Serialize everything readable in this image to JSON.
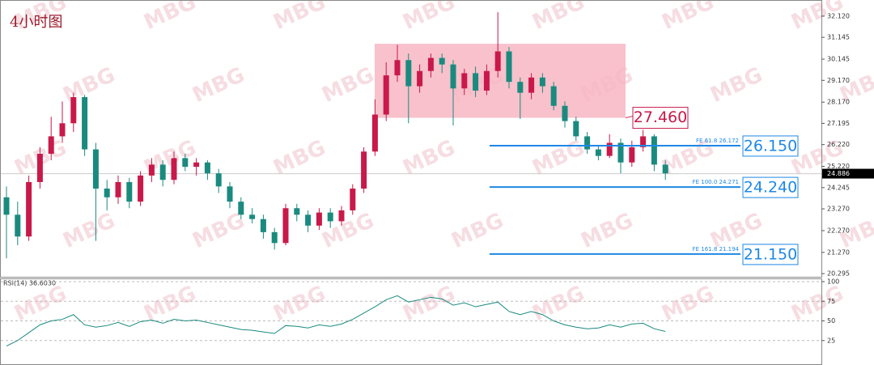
{
  "chart_data": {
    "type": "candlestick",
    "title": "4小时图",
    "watermark": "MBG",
    "up_color": "#c8194a",
    "down_color": "#1a8a7f",
    "ylim": [
      20.15,
      32.86
    ],
    "yticks": [
      {
        "value": 32.12,
        "label": "32.120"
      },
      {
        "value": 31.145,
        "label": "31.145"
      },
      {
        "value": 30.145,
        "label": "30.145"
      },
      {
        "value": 29.17,
        "label": "29.170"
      },
      {
        "value": 28.17,
        "label": "28.170"
      },
      {
        "value": 27.195,
        "label": "27.195"
      },
      {
        "value": 26.22,
        "label": "26.220"
      },
      {
        "value": 25.22,
        "label": "25.220"
      },
      {
        "value": 24.245,
        "label": "24.245"
      },
      {
        "value": 23.27,
        "label": "23.270"
      },
      {
        "value": 22.27,
        "label": "22.270"
      },
      {
        "value": 21.27,
        "label": "21.270"
      },
      {
        "value": 20.295,
        "label": "20.295"
      }
    ],
    "candles": [
      [
        23.8,
        24.3,
        21.0,
        23.0
      ],
      [
        23.0,
        23.6,
        21.6,
        22.0
      ],
      [
        22.0,
        24.8,
        21.8,
        24.5
      ],
      [
        24.5,
        26.1,
        24.2,
        25.8
      ],
      [
        25.8,
        27.5,
        25.5,
        26.6
      ],
      [
        26.6,
        28.2,
        26.3,
        27.2
      ],
      [
        27.2,
        28.6,
        26.8,
        28.4
      ],
      [
        28.4,
        28.5,
        25.7,
        26.0
      ],
      [
        26.0,
        26.3,
        21.8,
        24.2
      ],
      [
        24.2,
        24.6,
        23.2,
        23.8
      ],
      [
        23.8,
        24.8,
        23.5,
        24.5
      ],
      [
        24.5,
        24.7,
        23.3,
        23.6
      ],
      [
        23.6,
        25.0,
        23.4,
        24.8
      ],
      [
        24.8,
        25.6,
        24.5,
        25.3
      ],
      [
        25.3,
        25.5,
        24.3,
        24.6
      ],
      [
        24.6,
        25.9,
        24.4,
        25.6
      ],
      [
        25.6,
        25.8,
        25.0,
        25.2
      ],
      [
        25.2,
        25.6,
        24.8,
        25.4
      ],
      [
        25.4,
        25.5,
        24.6,
        24.9
      ],
      [
        24.9,
        25.1,
        24.0,
        24.3
      ],
      [
        24.3,
        24.5,
        23.3,
        23.6
      ],
      [
        23.6,
        23.8,
        22.8,
        23.0
      ],
      [
        23.0,
        23.3,
        22.6,
        22.8
      ],
      [
        22.8,
        23.0,
        21.9,
        22.2
      ],
      [
        22.2,
        22.4,
        21.4,
        21.7
      ],
      [
        21.7,
        23.5,
        21.6,
        23.3
      ],
      [
        23.3,
        23.5,
        22.7,
        23.0
      ],
      [
        23.0,
        23.2,
        22.2,
        22.5
      ],
      [
        22.5,
        23.3,
        22.3,
        23.1
      ],
      [
        23.1,
        23.3,
        22.4,
        22.7
      ],
      [
        22.7,
        23.4,
        22.5,
        23.2
      ],
      [
        23.2,
        24.4,
        23.0,
        24.2
      ],
      [
        24.2,
        26.1,
        24.0,
        25.9
      ],
      [
        25.9,
        28.3,
        25.7,
        27.6
      ],
      [
        27.6,
        30.0,
        27.3,
        29.4
      ],
      [
        29.4,
        30.8,
        29.1,
        30.1
      ],
      [
        30.1,
        30.4,
        27.2,
        28.9
      ],
      [
        28.9,
        29.9,
        28.6,
        29.6
      ],
      [
        29.6,
        30.4,
        29.3,
        30.2
      ],
      [
        30.2,
        30.4,
        29.5,
        29.9
      ],
      [
        29.9,
        30.1,
        27.1,
        28.8
      ],
      [
        28.8,
        29.7,
        28.5,
        29.5
      ],
      [
        29.5,
        29.8,
        28.4,
        28.7
      ],
      [
        28.7,
        29.9,
        28.5,
        29.6
      ],
      [
        29.6,
        32.3,
        29.3,
        30.5
      ],
      [
        30.5,
        30.7,
        28.8,
        29.1
      ],
      [
        29.1,
        29.3,
        27.4,
        28.6
      ],
      [
        28.6,
        29.5,
        28.3,
        29.3
      ],
      [
        29.3,
        29.5,
        28.6,
        28.9
      ],
      [
        28.9,
        29.1,
        27.8,
        28.0
      ],
      [
        28.0,
        28.2,
        27.0,
        27.3
      ],
      [
        27.3,
        27.5,
        26.4,
        26.6
      ],
      [
        26.6,
        26.8,
        25.8,
        26.0
      ],
      [
        26.0,
        26.2,
        25.5,
        25.7
      ],
      [
        25.7,
        26.7,
        25.6,
        26.3
      ],
      [
        26.3,
        26.5,
        24.9,
        25.4
      ],
      [
        25.4,
        26.4,
        25.2,
        26.1
      ],
      [
        26.1,
        26.9,
        25.9,
        26.6
      ],
      [
        26.6,
        26.7,
        25.0,
        25.3
      ],
      [
        25.3,
        25.5,
        24.6,
        24.9
      ]
    ],
    "current_price": {
      "value": 24.886,
      "label": "24.886"
    },
    "zone": {
      "high": 30.85,
      "low": 27.45,
      "color": "#f7b6c2",
      "label": "27.460"
    },
    "fib_levels": [
      {
        "text": "FE 61.8  26.172",
        "value": 26.172,
        "target": "26.150"
      },
      {
        "text": "FE 100.0  24.271",
        "value": 24.271,
        "target": "24.240"
      },
      {
        "text": "FE 161.8  21.194",
        "value": 21.194,
        "target": "21.150"
      }
    ],
    "fib_color": "#1e88e5",
    "rsi": {
      "label": "RSI(14) 36.6030",
      "color": "#1a8a7f",
      "ylim": [
        0,
        100
      ],
      "yticks": [
        100,
        75,
        50,
        25
      ],
      "values": [
        18,
        25,
        35,
        45,
        50,
        52,
        58,
        45,
        42,
        44,
        48,
        43,
        49,
        51,
        47,
        52,
        50,
        51,
        48,
        45,
        42,
        39,
        38,
        36,
        34,
        44,
        43,
        41,
        45,
        43,
        46,
        52,
        60,
        68,
        77,
        82,
        74,
        77,
        80,
        78,
        70,
        73,
        68,
        71,
        74,
        62,
        58,
        62,
        58,
        50,
        45,
        42,
        40,
        41,
        45,
        42,
        46,
        47,
        40,
        36.603
      ]
    }
  }
}
